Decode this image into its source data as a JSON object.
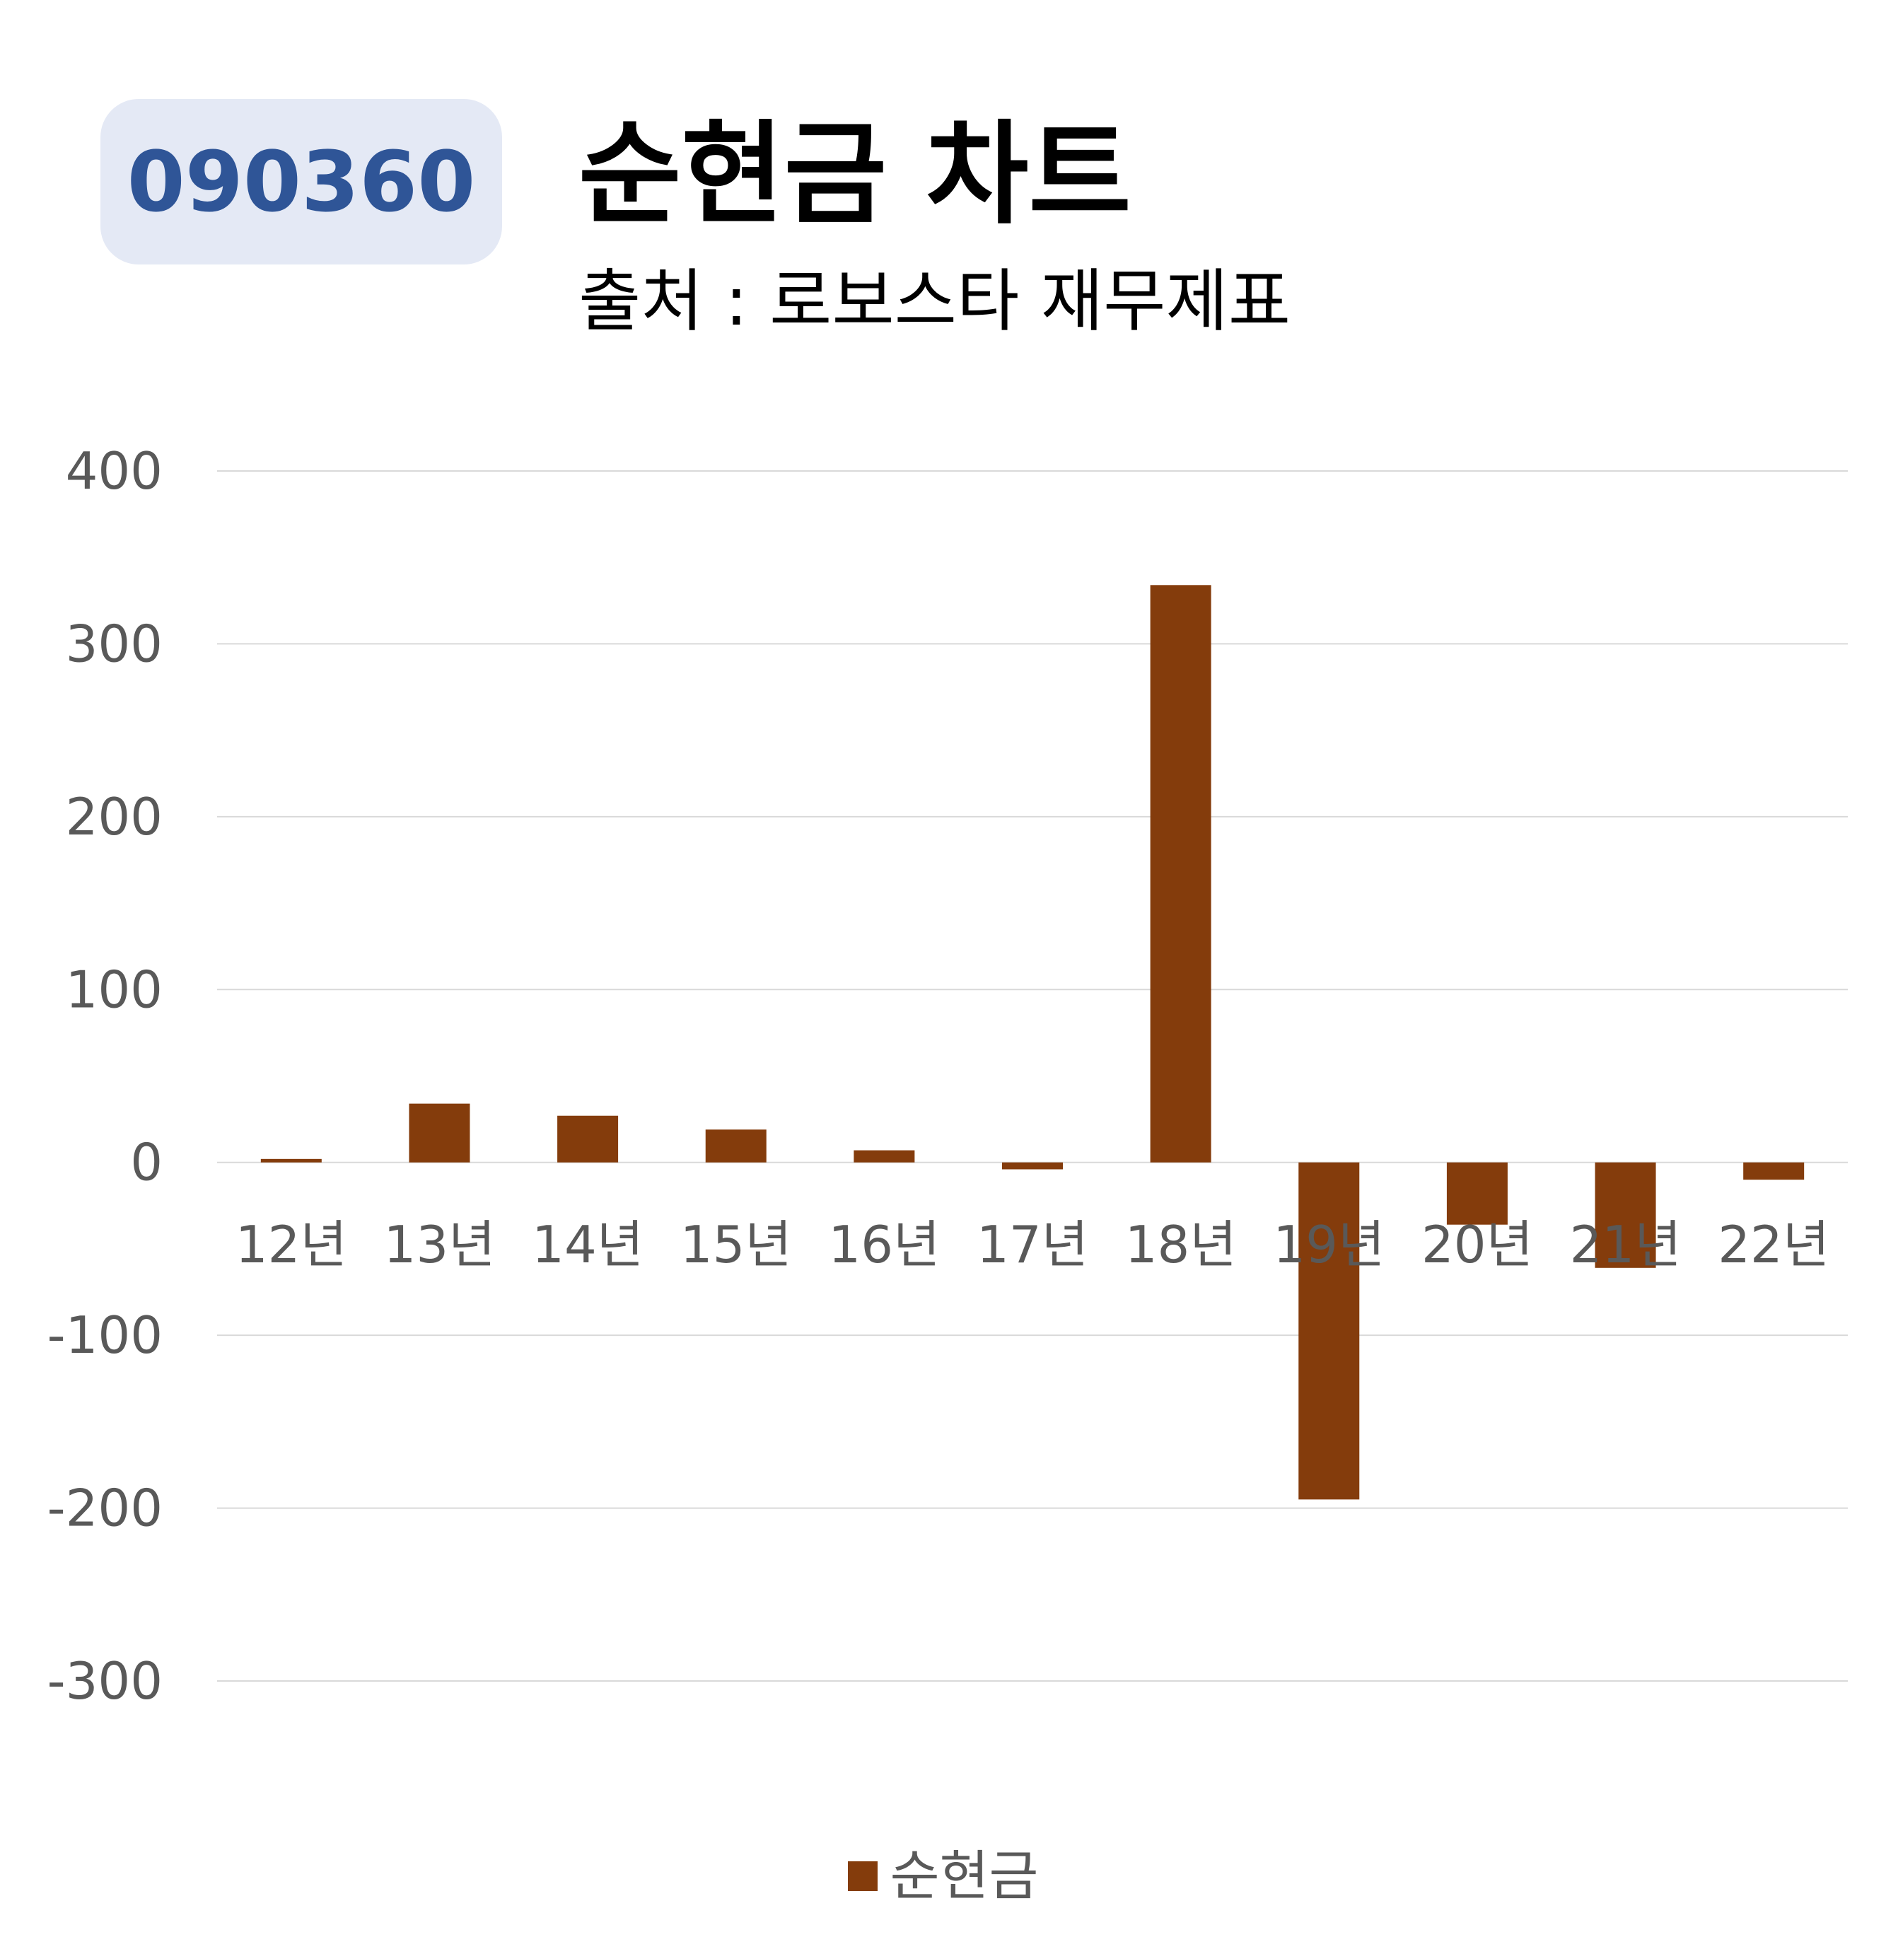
{
  "badge": {
    "code": "090360"
  },
  "header": {
    "title": "순현금 차트",
    "subtitle": "출처 : 로보스타 재무제표"
  },
  "colors": {
    "bar": "#843c0c",
    "grid": "#d9d9d9",
    "tick_text": "#595959",
    "badge_bg": "#e4e9f5",
    "badge_text": "#2f5597"
  },
  "chart_data": {
    "type": "bar",
    "categories": [
      "12년",
      "13년",
      "14년",
      "15년",
      "16년",
      "17년",
      "18년",
      "19년",
      "20년",
      "21년",
      "22년"
    ],
    "series": [
      {
        "name": "순현금",
        "values": [
          2,
          34,
          27,
          19,
          7,
          -4,
          334,
          -195,
          -36,
          -61,
          -10
        ]
      }
    ],
    "ylim": [
      -300,
      400
    ],
    "yticks": [
      400,
      300,
      200,
      100,
      0,
      -100,
      -200,
      -300
    ],
    "grid": true,
    "legend": "bottom"
  }
}
